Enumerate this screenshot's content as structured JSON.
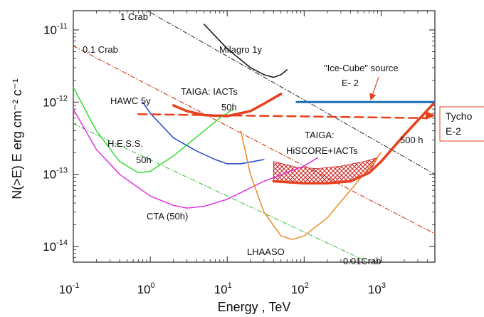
{
  "chart_data": {
    "type": "line",
    "title": "",
    "xlabel": "Energy , TeV",
    "ylabel": "N(>E) E erg cm⁻² c⁻¹",
    "xscale": "log",
    "yscale": "log",
    "xlim": [
      0.1,
      5000
    ],
    "ylim": [
      5e-15,
      2e-11
    ],
    "x_ticks": [
      {
        "base": "10",
        "exp": "-1"
      },
      {
        "base": "10",
        "exp": "0"
      },
      {
        "base": "10",
        "exp": "1"
      },
      {
        "base": "10",
        "exp": "2"
      },
      {
        "base": "10",
        "exp": "3"
      }
    ],
    "y_ticks": [
      {
        "base": "10",
        "exp": "-14"
      },
      {
        "base": "10",
        "exp": "-13"
      },
      {
        "base": "10",
        "exp": "-12"
      },
      {
        "base": "10",
        "exp": "-11"
      }
    ],
    "grid": false,
    "series": [
      {
        "key": "crab1",
        "name": "1 Crab",
        "color": "#222222",
        "dash": "dashdot",
        "width": 1,
        "x": [
          0.8,
          5000
        ],
        "y": [
          2e-11,
          1e-13
        ]
      },
      {
        "key": "crab01",
        "name": "0.1 Crab",
        "color": "#cc2200",
        "dash": "dashdot",
        "width": 1,
        "x": [
          0.1,
          5000
        ],
        "y": [
          6e-12,
          1.5e-14
        ]
      },
      {
        "key": "crab001",
        "name": "0.01Crab",
        "color": "#33bb33",
        "dash": "dashdot",
        "width": 1,
        "x": [
          0.1,
          1000
        ],
        "y": [
          5e-13,
          5e-15
        ]
      },
      {
        "key": "milagro",
        "name": "Milagro 1y",
        "color": "#111111",
        "width": 1.5,
        "x": [
          5,
          10,
          20,
          30,
          40,
          50,
          60
        ],
        "y": [
          1.2e-11,
          5.5e-12,
          3e-12,
          2.4e-12,
          2.2e-12,
          2.4e-12,
          2.8e-12
        ]
      },
      {
        "key": "taigaiact",
        "name": "TAIGA: IACTs 50h",
        "color": "#e8401c",
        "width": 3.5,
        "x": [
          2,
          3,
          5,
          10,
          20,
          30,
          50
        ],
        "y": [
          9e-13,
          7.5e-13,
          6.6e-13,
          6.4e-13,
          7.5e-13,
          9.5e-13,
          1.3e-12
        ]
      },
      {
        "key": "hawc",
        "name": "HAWC 5y",
        "color": "#2244cc",
        "width": 1.5,
        "x": [
          0.8,
          1,
          2,
          4,
          7,
          10,
          15,
          30
        ],
        "y": [
          1e-12,
          7e-13,
          3.2e-13,
          2.1e-13,
          1.6e-13,
          1.4e-13,
          1.4e-13,
          1.6e-13
        ]
      },
      {
        "key": "hess",
        "name": "H.E.S.S. 50h",
        "color": "#33dd33",
        "width": 1.5,
        "x": [
          0.1,
          0.2,
          0.4,
          0.7,
          1,
          2,
          5,
          8,
          12
        ],
        "y": [
          1.6e-12,
          4e-13,
          1.5e-13,
          1.05e-13,
          1.1e-13,
          1.8e-13,
          4e-13,
          6e-13,
          8e-13
        ]
      },
      {
        "key": "cta",
        "name": "CTA (50h)",
        "color": "#dd33dd",
        "width": 1.5,
        "x": [
          0.1,
          0.2,
          0.4,
          1,
          2,
          3,
          5,
          10,
          30,
          100,
          150
        ],
        "y": [
          8e-13,
          2.2e-13,
          1e-13,
          5e-14,
          3.7e-14,
          3.4e-14,
          3.6e-14,
          4.5e-14,
          8e-14,
          1.3e-13,
          1.7e-13
        ]
      },
      {
        "key": "lhaaso",
        "name": "LHAASO",
        "color": "#ee8822",
        "width": 1.5,
        "x": [
          15,
          20,
          30,
          50,
          70,
          100,
          200,
          500,
          1000
        ],
        "y": [
          4e-13,
          1e-13,
          3e-14,
          1.4e-14,
          1.25e-14,
          1.4e-14,
          2.5e-14,
          8e-14,
          2e-13
        ]
      },
      {
        "key": "hiscore",
        "name": "TAIGA: HiSCORE+IACTs 500 h",
        "color": "#e8401c",
        "width": 3.5,
        "x": [
          40,
          100,
          200,
          400,
          700,
          1000,
          2000,
          5000
        ],
        "y": [
          8e-14,
          7.5e-14,
          7.5e-14,
          8e-14,
          1.05e-13,
          1.5e-13,
          3.5e-13,
          1e-12
        ]
      },
      {
        "key": "icecube",
        "name": "\"Ice-Cube\" source E- 2",
        "color": "#1f6fb4",
        "width": 3,
        "x": [
          80,
          5000
        ],
        "y": [
          1e-12,
          1e-12
        ]
      },
      {
        "key": "tycho",
        "name": "Tycho E-2",
        "color": "#e8401c",
        "width": 2.5,
        "dash": "dash",
        "x": [
          0.7,
          4000
        ],
        "y": [
          6.8e-13,
          6e-13
        ]
      }
    ],
    "annotations": [
      {
        "key": "crab1",
        "text": "1 Crab"
      },
      {
        "key": "crab01",
        "text": "0.1 Crab"
      },
      {
        "key": "crab001",
        "text": "0.01Crab"
      },
      {
        "key": "milagro",
        "text": "Milagro 1y"
      },
      {
        "key": "taiga1",
        "text": "TAIGA: IACTs"
      },
      {
        "key": "taiga2",
        "text": "50h"
      },
      {
        "key": "hawc",
        "text": "HAWC 5y"
      },
      {
        "key": "hess1",
        "text": "H.E.S.S."
      },
      {
        "key": "hess2",
        "text": "50h"
      },
      {
        "key": "cta",
        "text": "CTA (50h)"
      },
      {
        "key": "lhaaso",
        "text": "LHAASO"
      },
      {
        "key": "hiscore1",
        "text": "TAIGA:"
      },
      {
        "key": "hiscore2",
        "text": "HiSCORE+IACTs"
      },
      {
        "key": "h500",
        "text": "500 h"
      },
      {
        "key": "ice1",
        "text": "\"Ice-Cube\" source"
      },
      {
        "key": "ice2",
        "text": "E- 2"
      },
      {
        "key": "tycho1",
        "text": "Tycho"
      },
      {
        "key": "tycho2",
        "text": "E-2"
      }
    ]
  }
}
